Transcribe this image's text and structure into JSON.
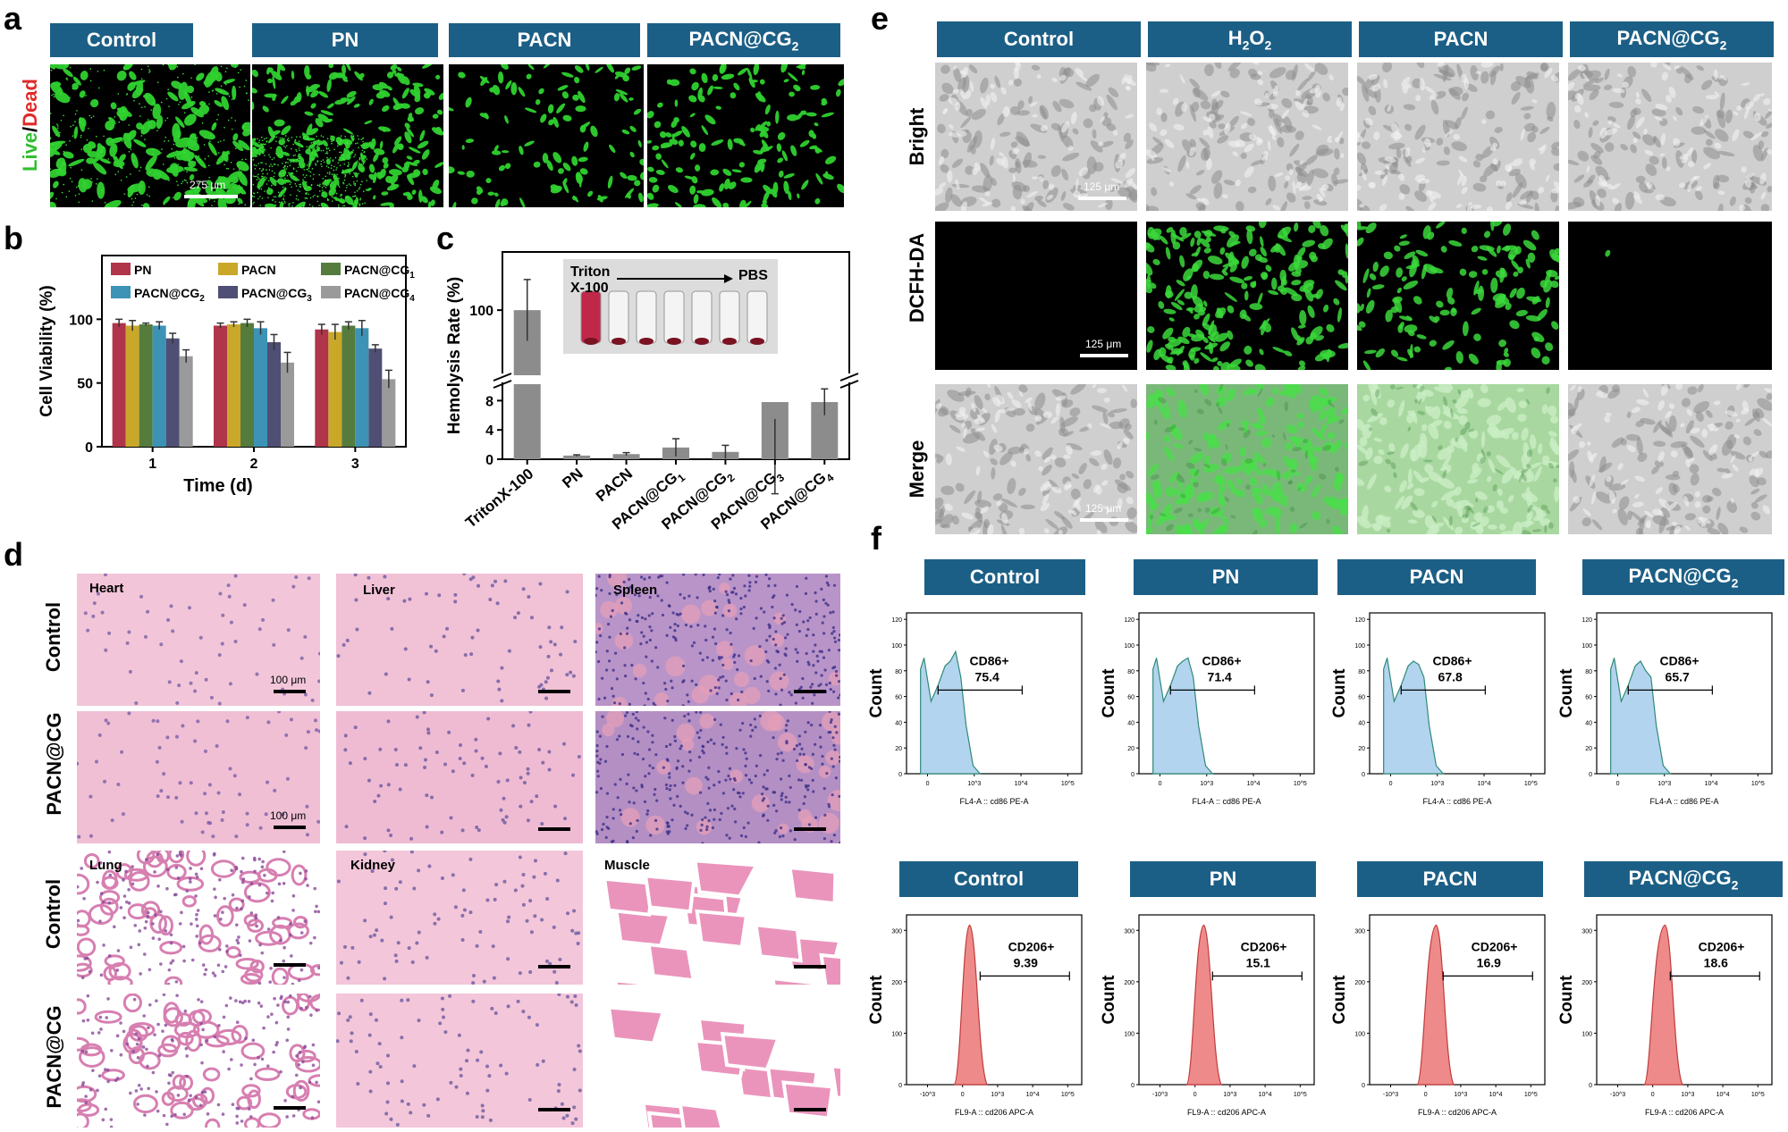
{
  "panel_labels": {
    "a": "a",
    "b": "b",
    "c": "c",
    "d": "d",
    "e": "e",
    "f": "f"
  },
  "panel_a": {
    "headers": [
      "Control",
      "PN",
      "PACN",
      "PACN@CG2"
    ],
    "ylabel_live": "Live",
    "ylabel_sep": "/",
    "ylabel_dead": "Dead",
    "scale": "275 μm"
  },
  "panel_e": {
    "headers": [
      "Control",
      "H2O2",
      "PACN",
      "PACN@CG2"
    ],
    "rows": [
      "Bright",
      "DCFH-DA",
      "Merge"
    ],
    "scale": "125 μm"
  },
  "panel_d": {
    "rows": [
      "Control",
      "PACN@CG",
      "Control",
      "PACN@CG"
    ],
    "organs": [
      "Heart",
      "Liver",
      "Spleen",
      "Lung",
      "Kidney",
      "Muscle"
    ],
    "scale": "100 μm"
  },
  "colors": {
    "header_bg": "#1c5f86",
    "PN": "#b0344a",
    "PACN": "#c9a829",
    "PACN@CG1": "#557c3c",
    "PACN@CG2": "#3d93b6",
    "PACN@CG3": "#4f4f75",
    "PACN@CG4": "#9a9a9a",
    "hemolysis_bar": "#8c8c8c",
    "cd86_fill": "#b3d4ee",
    "cd206_fill": "#ee8a8a"
  },
  "chart_data": [
    {
      "type": "bar",
      "id": "b",
      "categories": [
        "1",
        "2",
        "3"
      ],
      "xlabel": "Time (d)",
      "ylabel": "Cell Viability (%)",
      "ylim": [
        0,
        150
      ],
      "yticks": [
        0,
        50,
        100
      ],
      "series": [
        {
          "name": "PN",
          "values": [
            97,
            95,
            92
          ],
          "errors": [
            3,
            2,
            4
          ]
        },
        {
          "name": "PACN",
          "values": [
            95,
            96,
            90
          ],
          "errors": [
            4,
            2,
            6
          ]
        },
        {
          "name": "PACN@CG1",
          "values": [
            96,
            97,
            95
          ],
          "errors": [
            1,
            3,
            3
          ]
        },
        {
          "name": "PACN@CG2",
          "values": [
            95,
            93,
            93
          ],
          "errors": [
            3,
            5,
            6
          ]
        },
        {
          "name": "PACN@CG3",
          "values": [
            85,
            82,
            77
          ],
          "errors": [
            4,
            6,
            3
          ]
        },
        {
          "name": "PACN@CG4",
          "values": [
            71,
            66,
            53
          ],
          "errors": [
            5,
            8,
            7
          ]
        }
      ],
      "legend": "top"
    },
    {
      "type": "bar",
      "id": "c",
      "categories": [
        "TritonX-100",
        "PN",
        "PACN",
        "PACN@CG1",
        "PACN@CG2",
        "PACN@CG3",
        "PACN@CG4"
      ],
      "ylabel": "Hemolysis Rate (%)",
      "yticks": [
        0,
        4,
        8,
        100
      ],
      "axis_break": true,
      "values": [
        100,
        0.5,
        0.7,
        1.6,
        1.0,
        7.8,
        7.8
      ],
      "errors": [
        15,
        0.1,
        0.2,
        1.2,
        0.9,
        2.3,
        1.8
      ],
      "inset_text": {
        "left": "Triton X-100",
        "right": "PBS"
      }
    },
    {
      "type": "area",
      "id": "f-cd86",
      "ylabel": "Count",
      "xlabel": "FL4-A :: cd86 PE-A",
      "yticks": [
        0,
        20,
        40,
        60,
        80,
        100,
        120
      ],
      "xticks": [
        "0",
        "10^3",
        "10^4",
        "10^5"
      ],
      "groups": [
        {
          "name": "Control",
          "gate_label": "CD86+",
          "gate_value": "75.4"
        },
        {
          "name": "PN",
          "gate_label": "CD86+",
          "gate_value": "71.4"
        },
        {
          "name": "PACN",
          "gate_label": "CD86+",
          "gate_value": "67.8"
        },
        {
          "name": "PACN@CG2",
          "gate_label": "CD86+",
          "gate_value": "65.7"
        }
      ]
    },
    {
      "type": "area",
      "id": "f-cd206",
      "ylabel": "Count",
      "xlabel": "FL9-A :: cd206 APC-A",
      "yticks": [
        0,
        100,
        200,
        300
      ],
      "xticks": [
        "-10^3",
        "0",
        "10^3",
        "10^4",
        "10^5"
      ],
      "groups": [
        {
          "name": "Control",
          "gate_label": "CD206+",
          "gate_value": "9.39"
        },
        {
          "name": "PN",
          "gate_label": "CD206+",
          "gate_value": "15.1"
        },
        {
          "name": "PACN",
          "gate_label": "CD206+",
          "gate_value": "16.9"
        },
        {
          "name": "PACN@CG2",
          "gate_label": "CD206+",
          "gate_value": "18.6"
        }
      ]
    }
  ]
}
